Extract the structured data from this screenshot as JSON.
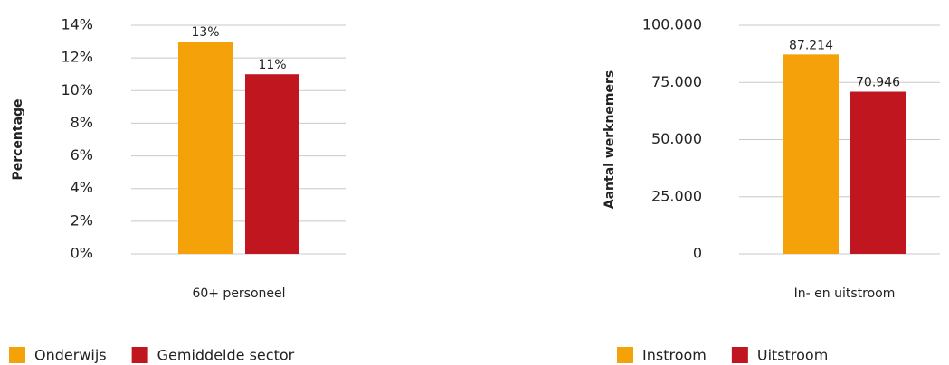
{
  "chart_data": [
    {
      "type": "bar",
      "y_label": "Percentage",
      "categories": [
        "60+ personeel"
      ],
      "series": [
        {
          "name": "Onderwijs",
          "color": "#f5a10a",
          "values": [
            13
          ],
          "value_labels": [
            "13%"
          ]
        },
        {
          "name": "Gemiddelde sector",
          "color": "#c0161f",
          "values": [
            11
          ],
          "value_labels": [
            "11%"
          ]
        }
      ],
      "ylim": [
        0,
        14
      ],
      "yticks": [
        {
          "value": 0,
          "label": "0%"
        },
        {
          "value": 2,
          "label": "2%"
        },
        {
          "value": 4,
          "label": "4%"
        },
        {
          "value": 6,
          "label": "6%"
        },
        {
          "value": 8,
          "label": "8%"
        },
        {
          "value": 10,
          "label": "10%"
        },
        {
          "value": 12,
          "label": "12%"
        },
        {
          "value": 14,
          "label": "14%"
        }
      ],
      "grid": true,
      "legend": "bottom"
    },
    {
      "type": "bar",
      "y_label": "Aantal werknemers",
      "categories": [
        "In- en uitstroom"
      ],
      "series": [
        {
          "name": "Instroom",
          "color": "#f5a10a",
          "values": [
            87214
          ],
          "value_labels": [
            "87.214"
          ]
        },
        {
          "name": "Uitstroom",
          "color": "#c0161f",
          "values": [
            70946
          ],
          "value_labels": [
            "70.946"
          ]
        }
      ],
      "ylim": [
        0,
        100000
      ],
      "yticks": [
        0,
        {
          "value": 25000,
          "label": "25.000"
        },
        {
          "value": 50000,
          "label": "50.000"
        },
        {
          "value": 75000,
          "label": "75.000"
        },
        {
          "value": 100000,
          "label": "100.000"
        }
      ],
      "grid": true,
      "legend": "bottom"
    }
  ]
}
